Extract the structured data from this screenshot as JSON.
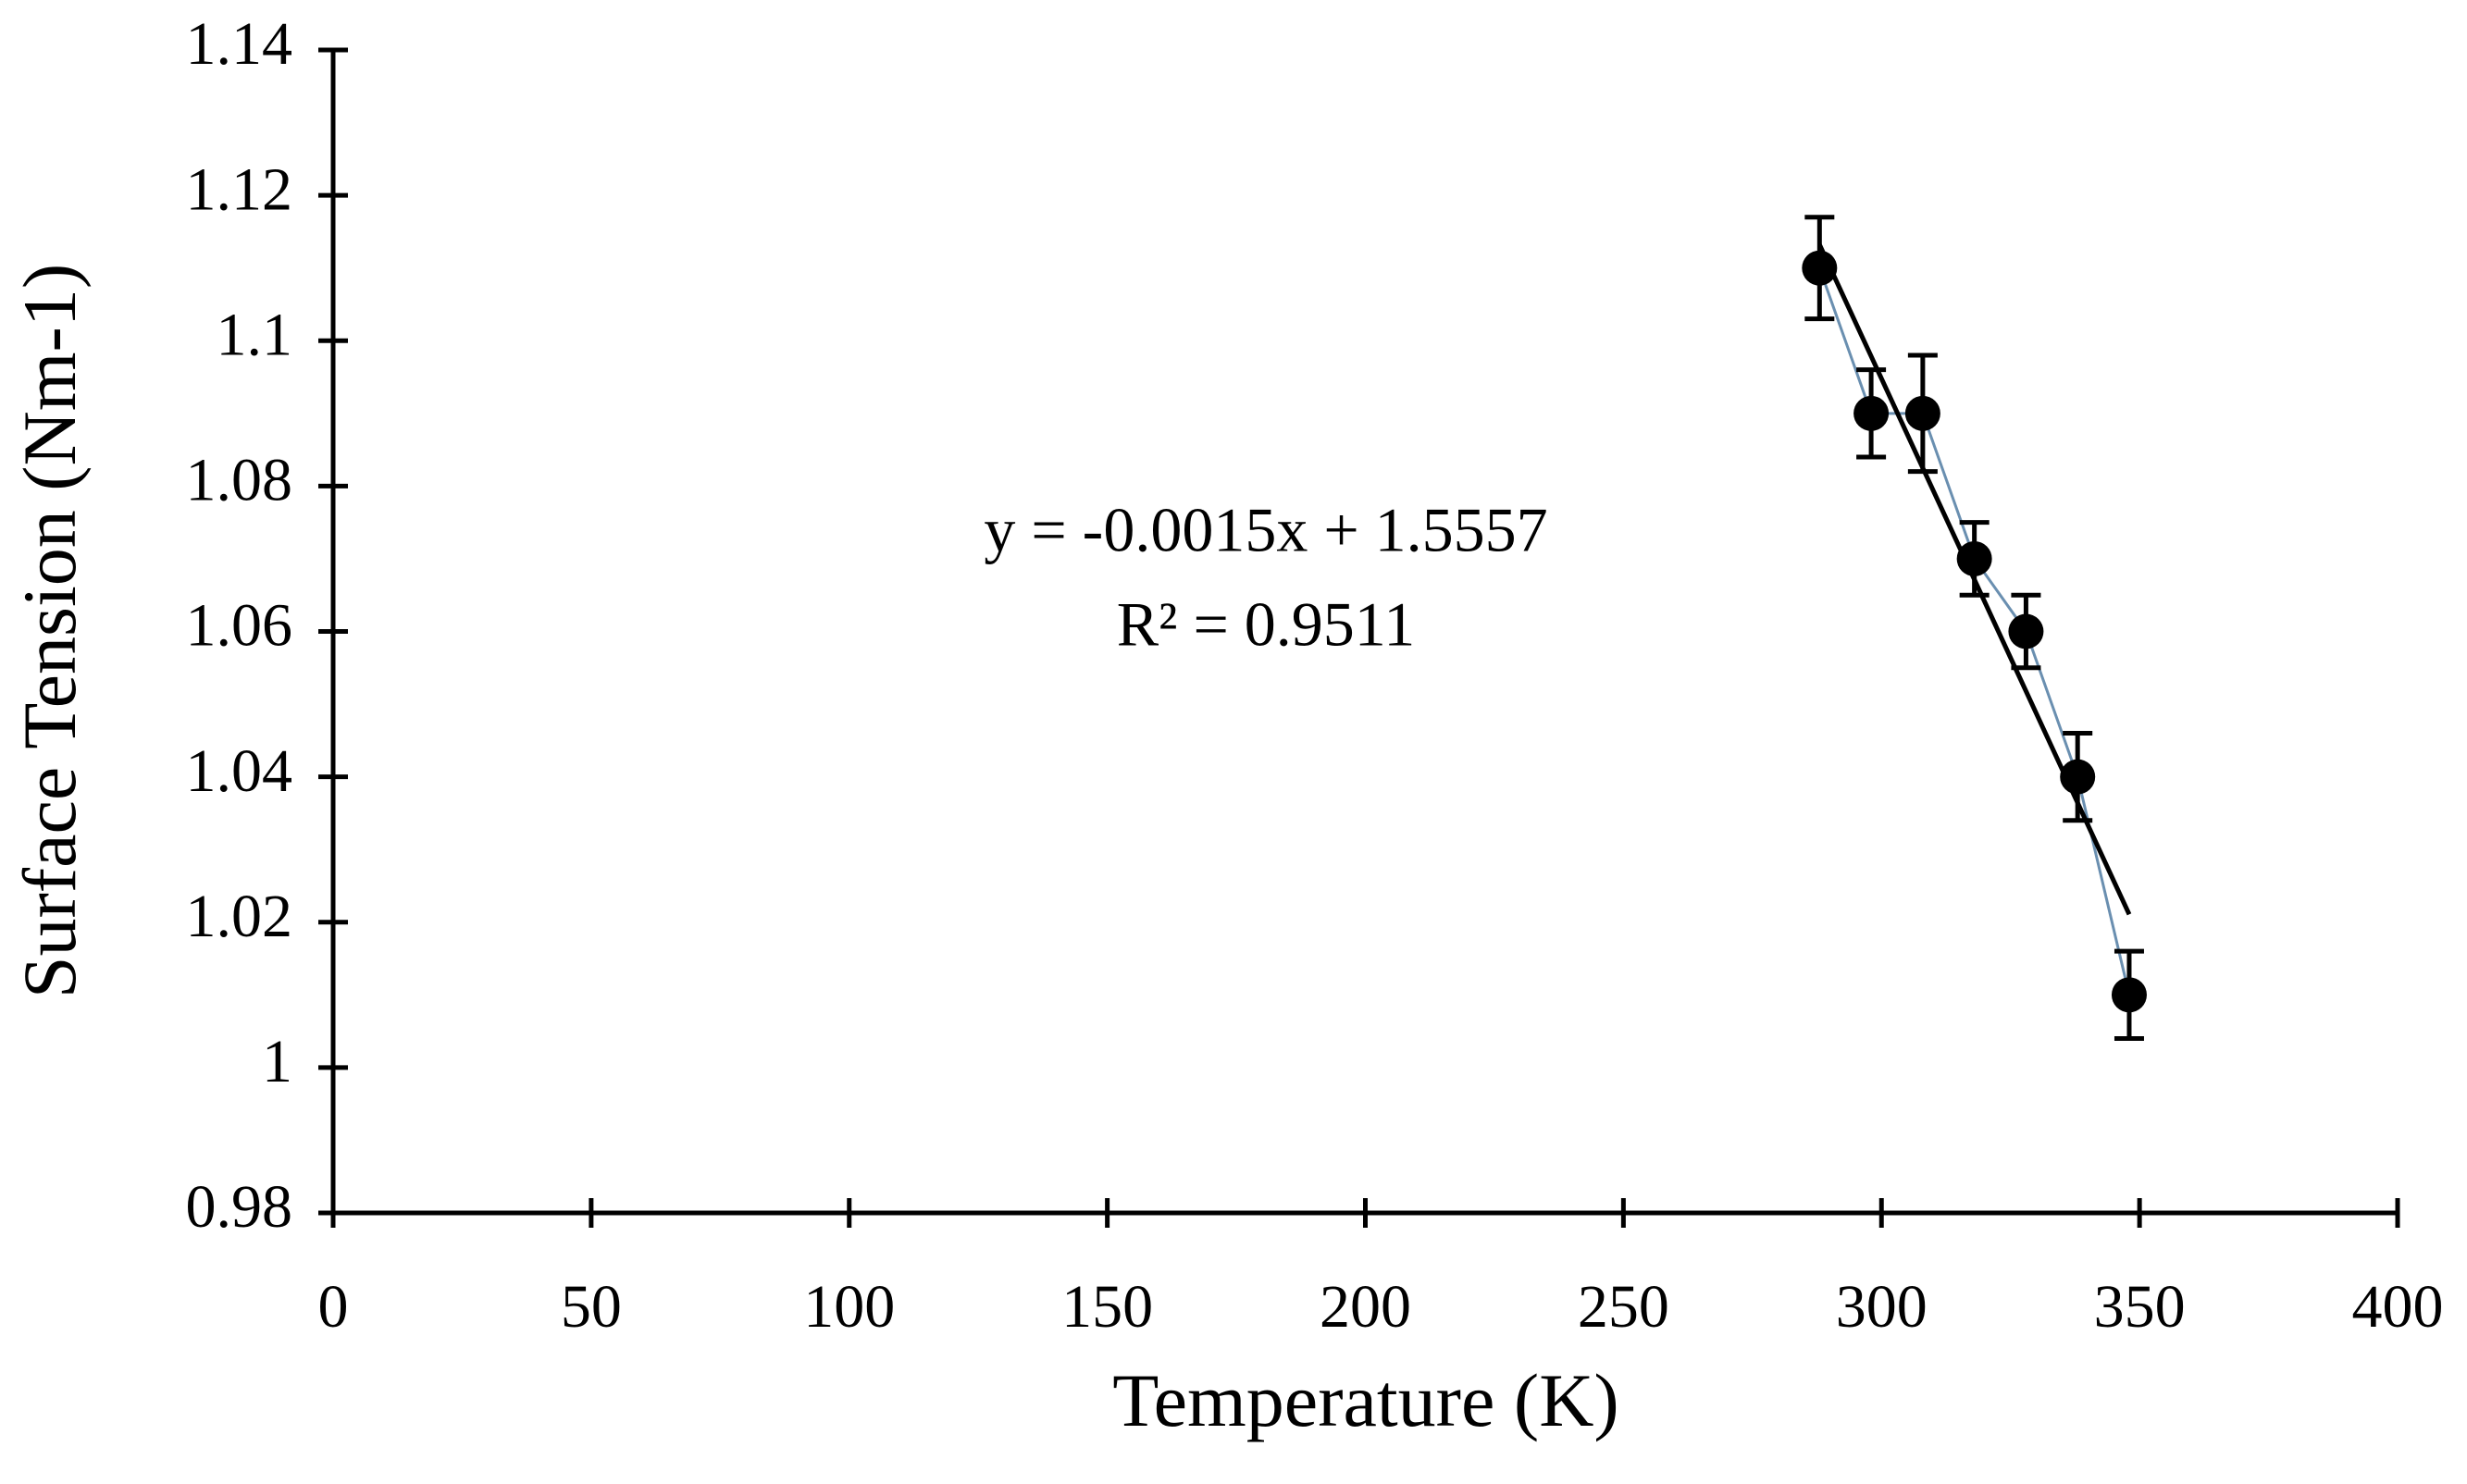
{
  "chart_data": {
    "type": "scatter",
    "x_label": "Temperature (K)",
    "y_label": "Surface Tension (Nm-1)",
    "annotations": [
      "y = -0.0015x + 1.5557",
      "R² = 0.9511"
    ],
    "x": [
      288,
      298,
      308,
      318,
      328,
      338,
      348
    ],
    "values": [
      1.11,
      1.09,
      1.09,
      1.07,
      1.06,
      1.04,
      1.01
    ],
    "errors": [
      0.007,
      0.006,
      0.008,
      0.005,
      0.005,
      0.006,
      0.006
    ],
    "color": "#000000",
    "connect_color": "#6a8fb0",
    "trendline": "linear",
    "xlim": [
      0,
      400
    ],
    "xticks": [
      0,
      50,
      100,
      150,
      200,
      250,
      300,
      350,
      400
    ],
    "ylim": [
      0.98,
      1.14
    ],
    "yticks": [
      0.98,
      1,
      1.02,
      1.04,
      1.06,
      1.08,
      1.1,
      1.12,
      1.14
    ]
  }
}
